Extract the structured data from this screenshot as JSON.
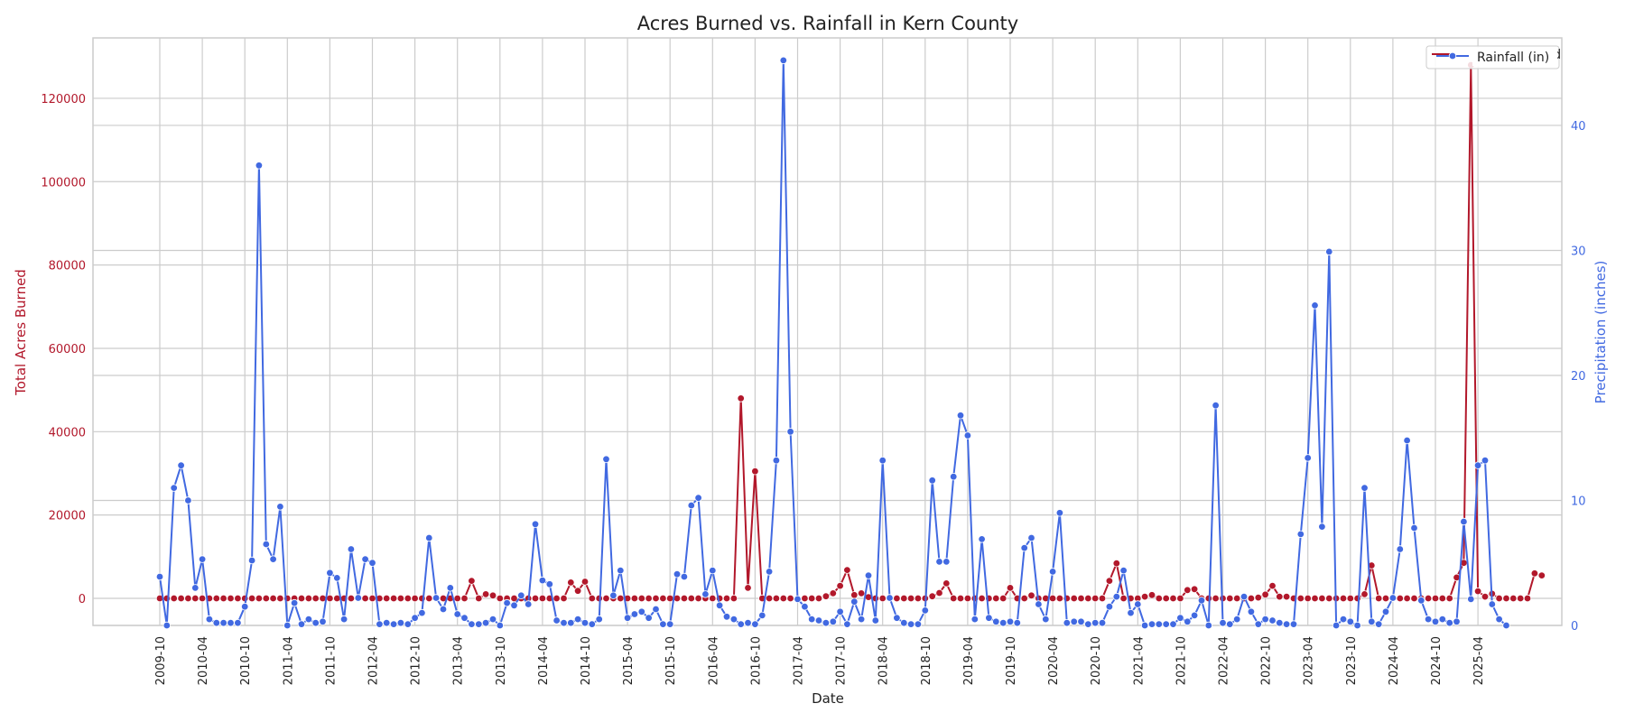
{
  "chart_data": {
    "type": "line",
    "title": "Acres Burned vs. Rainfall in Kern County",
    "xlabel": "Date",
    "ylabel_left": "Total Acres Burned",
    "ylabel_right": "Precipitation (inches)",
    "start_month": "2009-10",
    "xtick_labels": [
      "2009-10",
      "2010-04",
      "2010-10",
      "2011-04",
      "2011-10",
      "2012-04",
      "2012-10",
      "2013-04",
      "2013-10",
      "2014-04",
      "2014-10",
      "2015-04",
      "2015-10",
      "2016-04",
      "2016-10",
      "2017-04",
      "2017-10",
      "2018-04",
      "2018-10",
      "2019-04",
      "2019-10",
      "2020-04",
      "2020-10",
      "2021-04",
      "2021-10",
      "2022-04",
      "2022-10",
      "2023-04",
      "2023-10",
      "2024-04",
      "2024-10",
      "2025-04"
    ],
    "ylim_left": [
      -6500,
      134500
    ],
    "yticks_left": [
      "0",
      "20000",
      "40000",
      "60000",
      "80000",
      "100000",
      "120000"
    ],
    "ylim_right": [
      0,
      47
    ],
    "yticks_right": [
      "0",
      "10",
      "20",
      "30",
      "40"
    ],
    "grid": true,
    "legend_position": "top-right",
    "legend": [
      {
        "name": "Acres Burned",
        "color": "#b2182b"
      },
      {
        "name": "Rainfall (in)",
        "color": "#4169e1"
      }
    ],
    "colors": {
      "acres": "#b2182b",
      "rain": "#4169e1",
      "grid": "#cccccc"
    },
    "series": [
      {
        "name": "Acres Burned",
        "axis": "left",
        "values": [
          0,
          0,
          0,
          0,
          0,
          0,
          0,
          0,
          0,
          0,
          0,
          0,
          0,
          0,
          0,
          0,
          0,
          0,
          0,
          0,
          0,
          0,
          0,
          0,
          0,
          0,
          0,
          0,
          0,
          0,
          0,
          0,
          0,
          0,
          0,
          0,
          0,
          0,
          0,
          0,
          0,
          0,
          0,
          0,
          4200,
          0,
          1000,
          700,
          0,
          0,
          0,
          0,
          0,
          0,
          0,
          0,
          0,
          0,
          3800,
          1800,
          4000,
          0,
          0,
          0,
          0,
          0,
          0,
          0,
          0,
          0,
          0,
          0,
          0,
          0,
          0,
          0,
          0,
          0,
          0,
          0,
          0,
          0,
          48000,
          2500,
          30500,
          0,
          0,
          0,
          0,
          0,
          0,
          0,
          0,
          0,
          500,
          1200,
          3000,
          6800,
          800,
          1200,
          300,
          0,
          0,
          0,
          0,
          0,
          0,
          0,
          0,
          500,
          1300,
          3600,
          0,
          0,
          0,
          0,
          0,
          0,
          0,
          0,
          2500,
          0,
          0,
          700,
          0,
          0,
          0,
          0,
          0,
          0,
          0,
          0,
          0,
          0,
          4200,
          8400,
          0,
          0,
          0,
          400,
          800,
          0,
          0,
          0,
          0,
          2000,
          2200,
          0,
          0,
          0,
          0,
          0,
          0,
          0,
          0,
          200,
          900,
          3000,
          400,
          400,
          0,
          0,
          0,
          0,
          0,
          0,
          0,
          0,
          0,
          0,
          1000,
          7900,
          0,
          0,
          0,
          0,
          0,
          0,
          0,
          0,
          0,
          0,
          0,
          5000,
          8500,
          128000,
          1700,
          400,
          1100,
          0,
          0,
          0,
          0,
          0,
          6000,
          5500
        ]
      },
      {
        "name": "Rainfall (in)",
        "axis": "right",
        "values": [
          3.9,
          0,
          11,
          12.8,
          10,
          3,
          5.3,
          0.5,
          0.2,
          0.2,
          0.2,
          0.2,
          1.5,
          5.2,
          36.8,
          6.5,
          5.3,
          9.5,
          0,
          1.8,
          0.1,
          0.5,
          0.2,
          0.3,
          4.2,
          3.8,
          0.5,
          6.1,
          2.2,
          5.3,
          5,
          0.1,
          0.2,
          0.1,
          0.2,
          0.1,
          0.6,
          1,
          7,
          2.2,
          1.3,
          3,
          0.9,
          0.6,
          0.1,
          0.1,
          0.2,
          0.5,
          0,
          1.8,
          1.6,
          2.4,
          1.7,
          8.1,
          3.6,
          3.3,
          0.4,
          0.2,
          0.2,
          0.5,
          0.2,
          0.1,
          0.5,
          13.3,
          2.4,
          4.4,
          0.6,
          0.9,
          1.1,
          0.6,
          1.3,
          0.1,
          0.1,
          4.1,
          3.9,
          9.6,
          10.2,
          2.5,
          4.4,
          1.6,
          0.7,
          0.5,
          0.1,
          0.2,
          0.1,
          0.8,
          4.3,
          13.2,
          45.2,
          15.5,
          2.1,
          1.5,
          0.5,
          0.4,
          0.2,
          0.3,
          1.1,
          0.1,
          1.9,
          0.5,
          4,
          0.4,
          13.2,
          2.2,
          0.6,
          0.2,
          0.1,
          0.1,
          1.2,
          11.6,
          5.1,
          5.1,
          11.9,
          16.8,
          15.2,
          0.5,
          6.9,
          0.6,
          0.3,
          0.2,
          0.3,
          0.2,
          6.2,
          7,
          1.7,
          0.5,
          4.3,
          9,
          0.2,
          0.3,
          0.3,
          0.1,
          0.2,
          0.2,
          1.5,
          2.3,
          4.4,
          1,
          1.7,
          0,
          0.1,
          0.1,
          0.1,
          0.1,
          0.6,
          0.3,
          0.8,
          2,
          0,
          17.6,
          0.2,
          0.1,
          0.5,
          2.3,
          1.1,
          0.1,
          0.5,
          0.4,
          0.2,
          0.1,
          0.1,
          7.3,
          13.4,
          25.6,
          7.9,
          29.9,
          0,
          0.5,
          0.3,
          0,
          11,
          0.3,
          0.1,
          1.1,
          2.2,
          6.1,
          14.8,
          7.8,
          2,
          0.5,
          0.3,
          0.5,
          0.2,
          0.3,
          8.3,
          2.1,
          12.8,
          13.2,
          1.7,
          0.5,
          0
        ]
      }
    ]
  }
}
